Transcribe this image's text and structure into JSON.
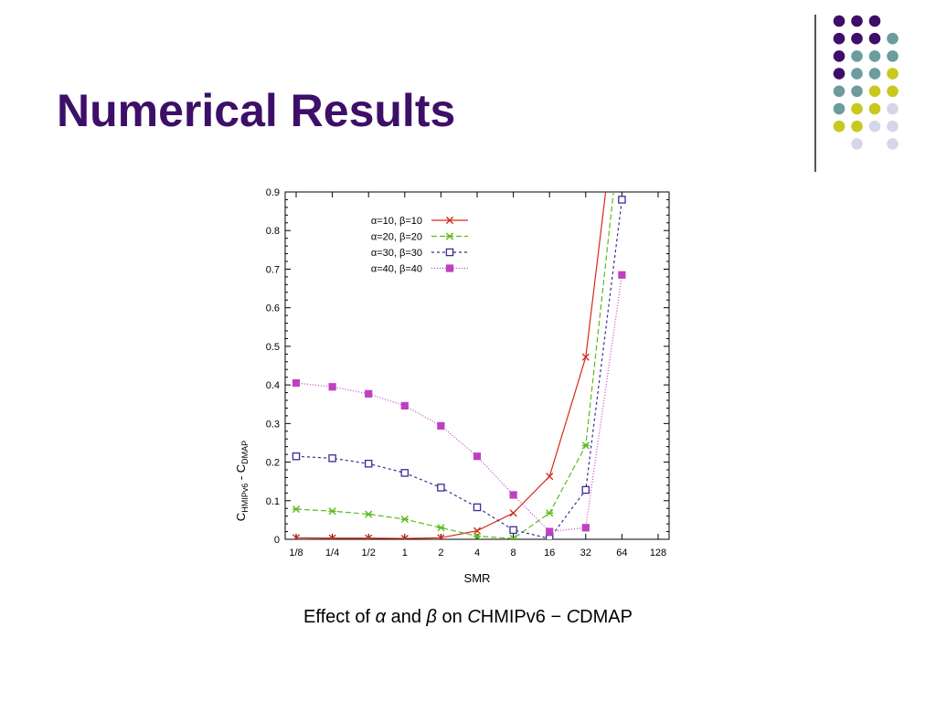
{
  "slide": {
    "title": "Numerical Results",
    "caption": {
      "p1": "Effect of ",
      "alpha": "α",
      "p2": " and ",
      "beta": "β",
      "p3": " on ",
      "c1": "C",
      "p4": "HMIPv6 − ",
      "c2": "C",
      "p5": "DMAP"
    }
  },
  "decoration": {
    "dot_colors": {
      "purple": "#3d0f68",
      "teal": "#6c9c9c",
      "yellow": "#c8c81e",
      "lavender": "#d6d6ea"
    },
    "rows": [
      [
        null,
        "purple",
        "purple",
        "purple",
        null
      ],
      [
        null,
        "purple",
        "purple",
        "purple",
        "teal"
      ],
      [
        null,
        "purple",
        "teal",
        "teal",
        "teal"
      ],
      [
        null,
        "purple",
        "teal",
        "teal",
        "yellow"
      ],
      [
        null,
        "teal",
        "teal",
        "yellow",
        "yellow"
      ],
      [
        null,
        "teal",
        "yellow",
        "yellow",
        "lavender"
      ],
      [
        null,
        "yellow",
        "yellow",
        "lavender",
        "lavender"
      ],
      [
        null,
        null,
        "lavender",
        null,
        "lavender"
      ]
    ]
  },
  "chart_data": {
    "type": "line",
    "ylabel": {
      "main": "C",
      "sub1": "HMIPv6",
      "sep": " - ",
      "main2": "C",
      "sub2": "DMAP"
    },
    "xlabel": "SMR",
    "categories": [
      "1/8",
      "1/4",
      "1/2",
      "1",
      "2",
      "4",
      "8",
      "16",
      "32",
      "64",
      "128"
    ],
    "ylim": [
      0,
      0.9
    ],
    "yticks": [
      "0",
      "0.1",
      "0.2",
      "0.3",
      "0.4",
      "0.5",
      "0.6",
      "0.7",
      "0.8",
      "0.9"
    ],
    "legend_position": "top-right",
    "grid": false,
    "series": [
      {
        "name": "α=10, β=10",
        "color": "#d42a1a",
        "dash": "solid",
        "marker": "x",
        "values": [
          0.004,
          0.003,
          0.003,
          0.002,
          0.004,
          0.022,
          0.068,
          0.163,
          0.472,
          1.25,
          null
        ]
      },
      {
        "name": "α=20, β=20",
        "color": "#5fba1e",
        "dash": "dashed",
        "marker": "asterisk",
        "values": [
          0.078,
          0.073,
          0.065,
          0.052,
          0.03,
          0.008,
          0.002,
          0.068,
          0.243,
          1.1,
          null
        ]
      },
      {
        "name": "α=30, β=30",
        "color": "#3c2a96",
        "dash": "short-dash",
        "marker": "open-square",
        "values": [
          0.215,
          0.21,
          0.196,
          0.172,
          0.134,
          0.083,
          0.024,
          0.002,
          0.128,
          0.88,
          null
        ]
      },
      {
        "name": "α=40, β=40",
        "color": "#c040c0",
        "dash": "dotted",
        "marker": "filled-square",
        "values": [
          0.405,
          0.395,
          0.377,
          0.346,
          0.294,
          0.215,
          0.115,
          0.02,
          0.03,
          0.685,
          null
        ]
      }
    ]
  }
}
